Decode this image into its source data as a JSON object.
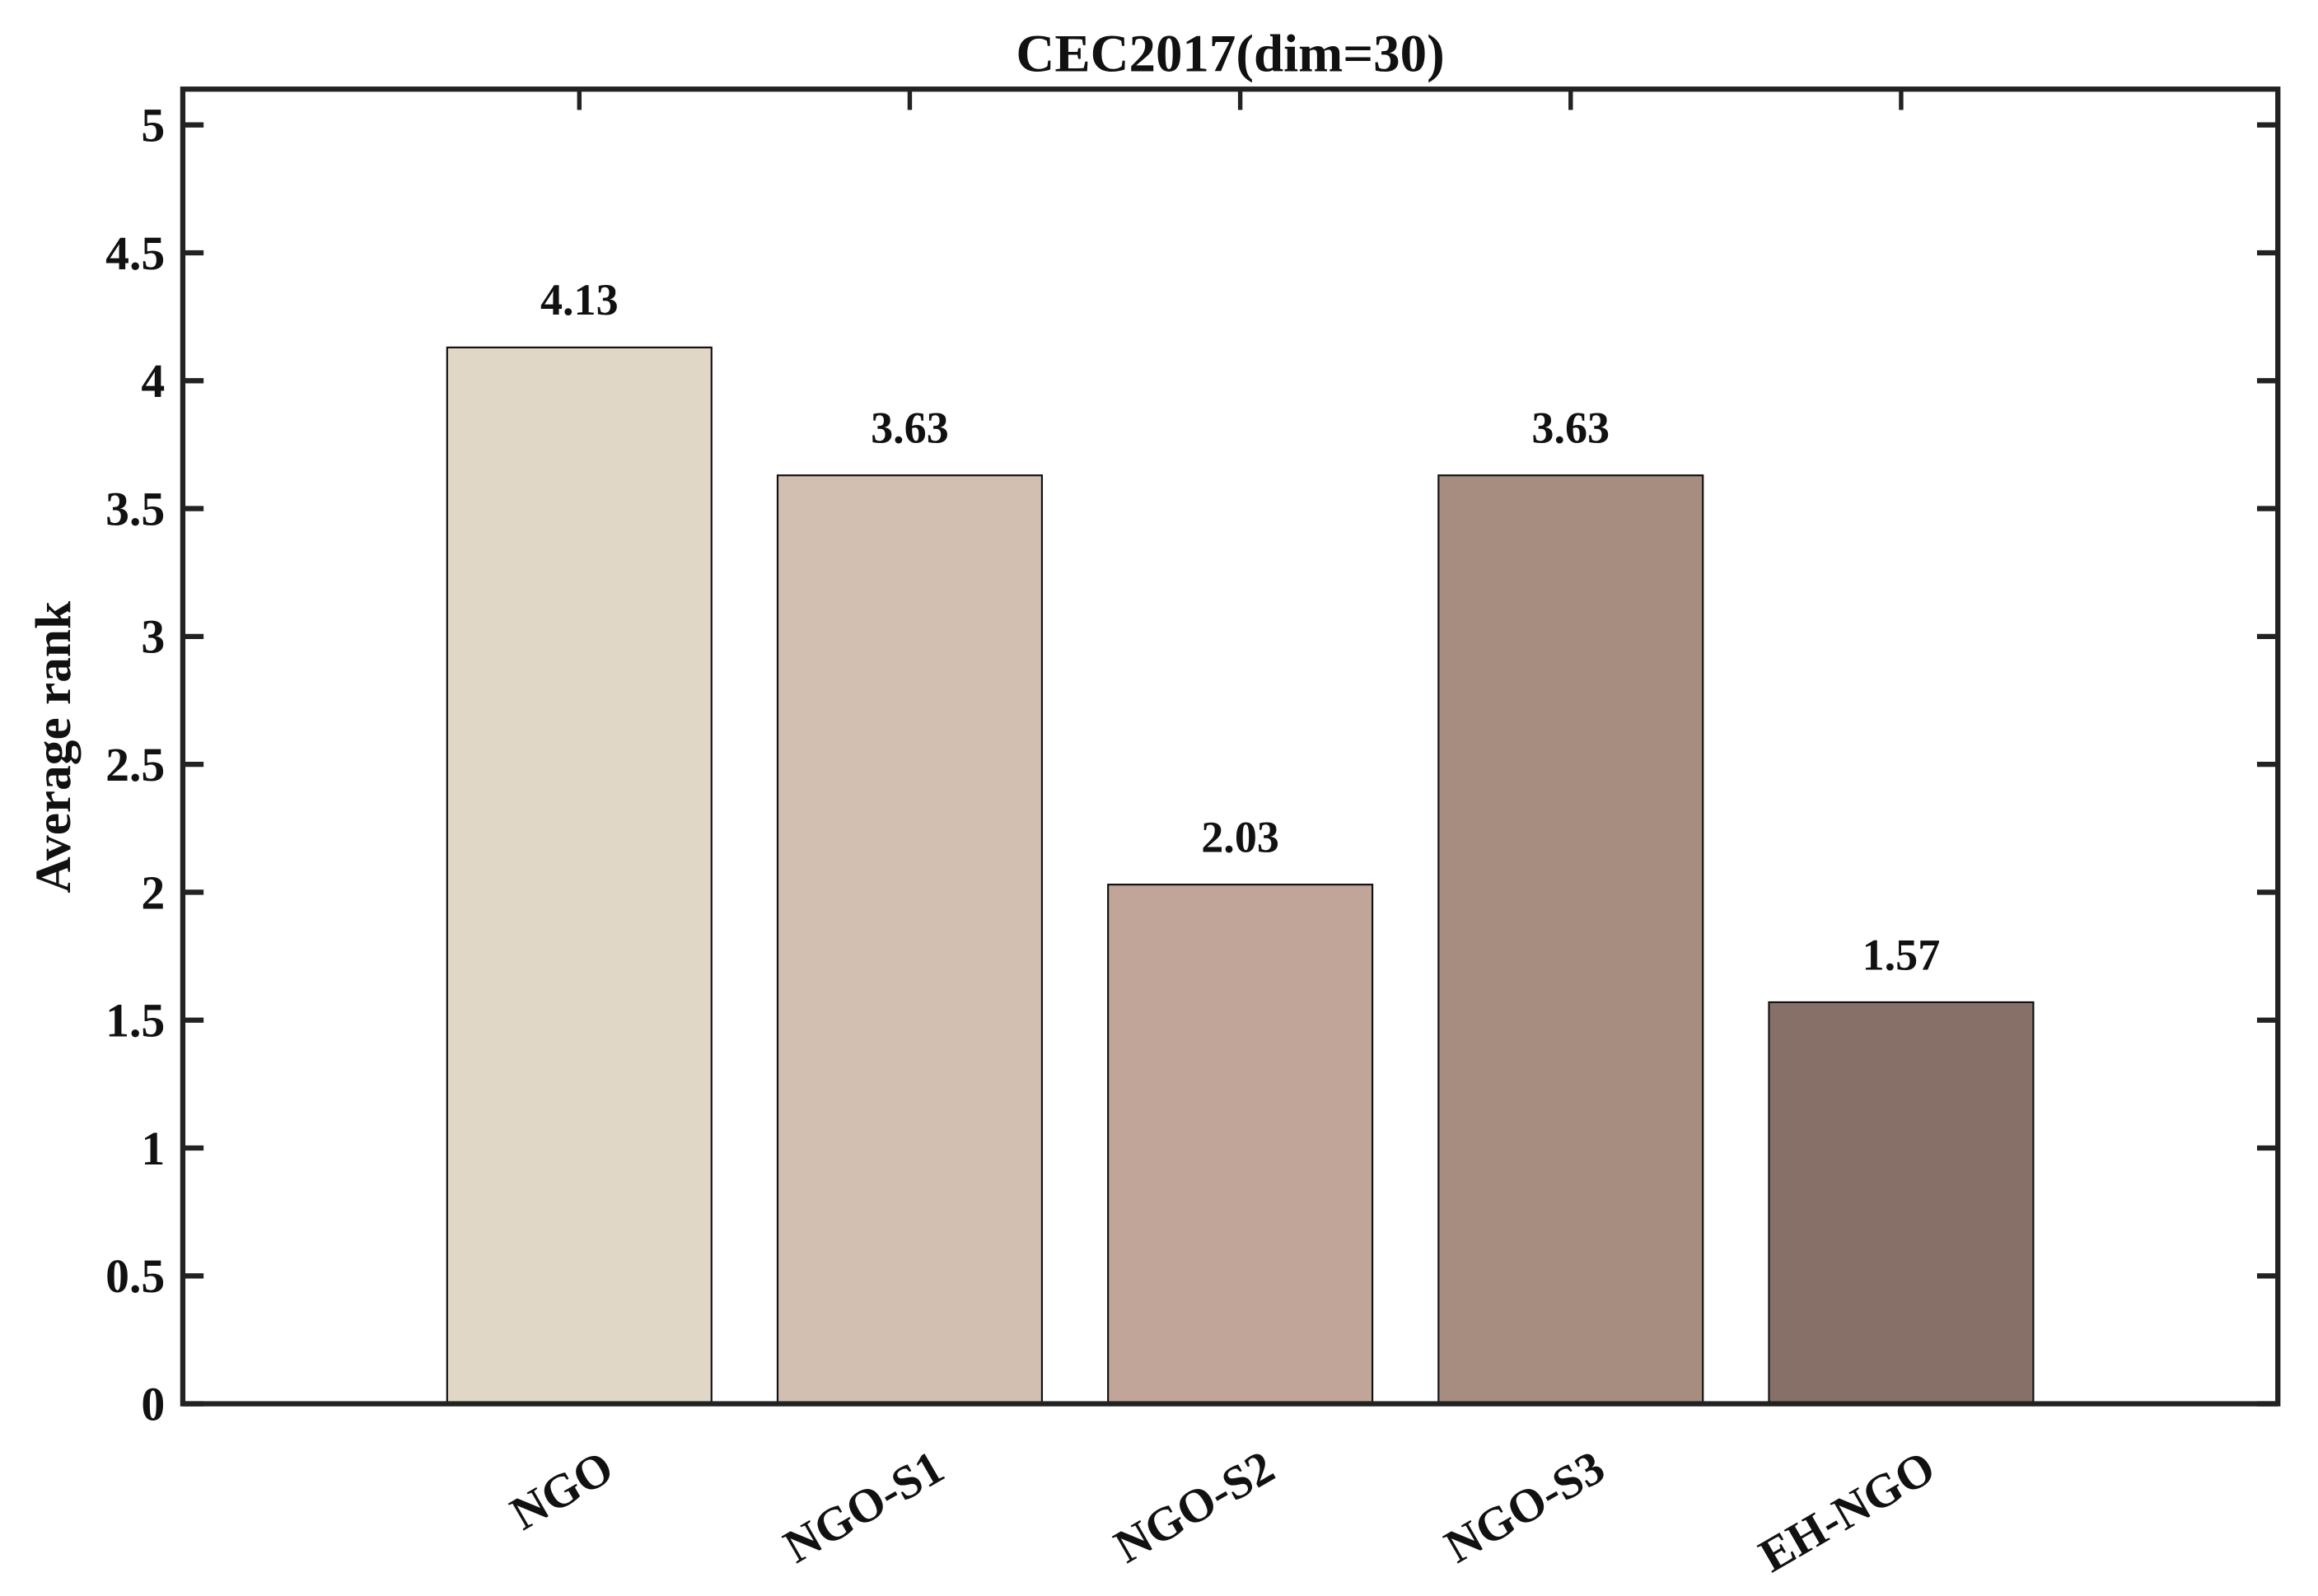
{
  "chart_data": {
    "type": "bar",
    "title": "CEC2017(dim=30)",
    "xlabel": "",
    "ylabel": "Average rank",
    "categories": [
      "NGO",
      "NGO-S1",
      "NGO-S2",
      "NGO-S3",
      "EH-NGO"
    ],
    "values": [
      4.13,
      3.63,
      2.03,
      3.63,
      1.57
    ],
    "value_labels": [
      "4.13",
      "3.63",
      "2.03",
      "3.63",
      "1.57"
    ],
    "colors": [
      "#E0D7C6",
      "#D2BFB1",
      "#C0A598",
      "#A78C80",
      "#877068"
    ],
    "ylim": [
      0,
      5.14
    ],
    "yticks": [
      0,
      0.5,
      1,
      1.5,
      2,
      2.5,
      3,
      3.5,
      4,
      4.5,
      5
    ],
    "ytick_labels": [
      "0",
      "0.5",
      "1",
      "1.5",
      "2",
      "2.5",
      "3",
      "3.5",
      "4",
      "4.5",
      "5"
    ],
    "grid": false,
    "legend": "none"
  }
}
